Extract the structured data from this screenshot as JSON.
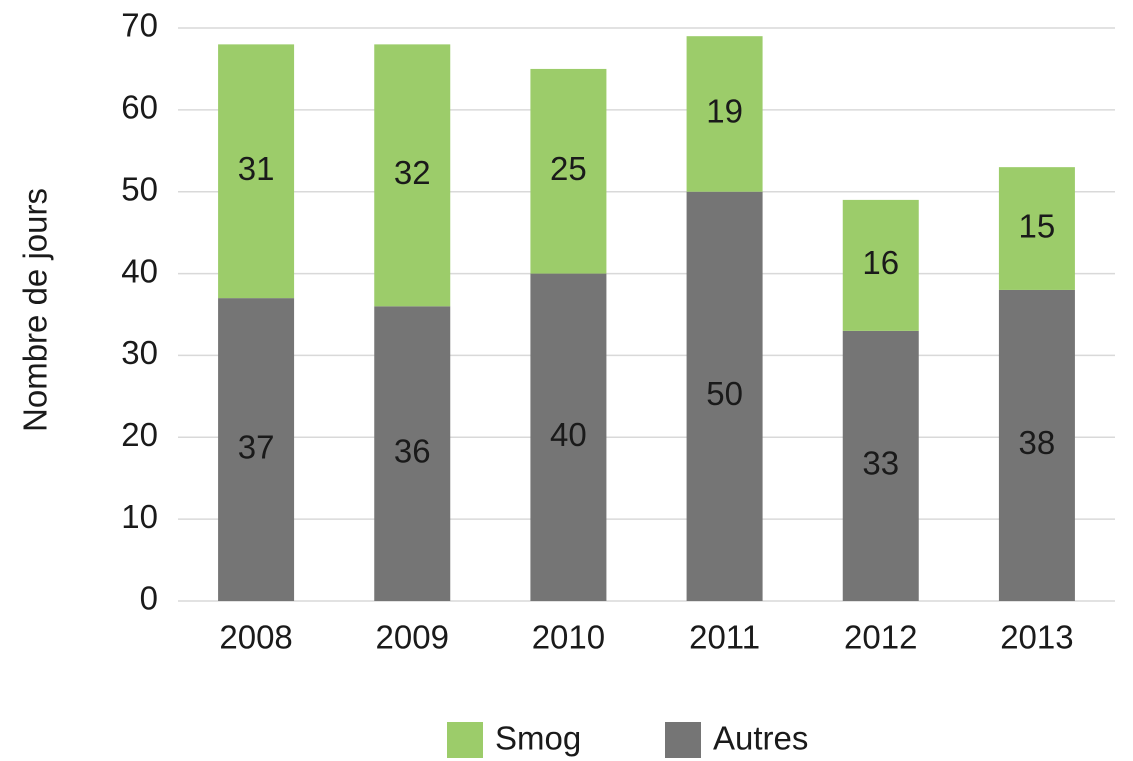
{
  "chart_data": {
    "type": "stacked_bar",
    "y_label": "Nombre de jours",
    "categories": [
      "2008",
      "2009",
      "2010",
      "2011",
      "2012",
      "2013"
    ],
    "series": [
      {
        "name": "Smog",
        "color": "#9ccc6a",
        "values": [
          31,
          32,
          25,
          19,
          16,
          15
        ]
      },
      {
        "name": "Autres",
        "color": "#757575",
        "values": [
          37,
          36,
          40,
          50,
          33,
          38
        ]
      }
    ],
    "ylim": [
      0,
      70
    ],
    "yticks": [
      0,
      10,
      20,
      30,
      40,
      50,
      60,
      70
    ],
    "grid": true,
    "legend": "bottom"
  }
}
